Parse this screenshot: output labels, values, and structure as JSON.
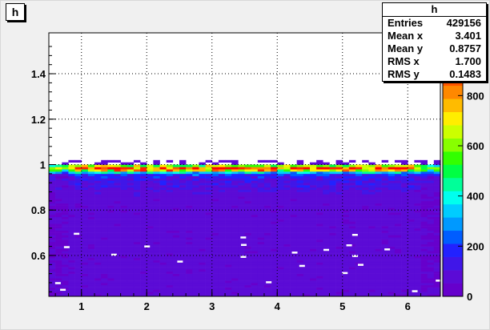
{
  "title": "h",
  "stats": {
    "name": "h",
    "rows": [
      {
        "label": "Entries",
        "value": "429156"
      },
      {
        "label": "Mean x",
        "value": "3.401"
      },
      {
        "label": "Mean y",
        "value": "0.8757"
      },
      {
        "label": "RMS x",
        "value": "1.700"
      },
      {
        "label": "RMS y",
        "value": "0.1483"
      }
    ]
  },
  "chart_data": {
    "type": "heatmap",
    "title": "h",
    "xlabel": "",
    "ylabel": "",
    "xlim": [
      0.5,
      6.5
    ],
    "ylim": [
      0.42,
      1.58
    ],
    "x_ticks": [
      1,
      2,
      3,
      4,
      5,
      6
    ],
    "y_ticks": [
      0.6,
      0.8,
      1.0,
      1.2,
      1.4
    ],
    "y_tick_labels": [
      "0.6",
      "0.8",
      "1",
      "1.2",
      "1.4"
    ],
    "z_ticks": [
      0,
      200,
      400,
      600,
      800
    ],
    "zlim": [
      0,
      1050
    ],
    "grid": true,
    "palette": [
      "#6600cc",
      "#5b0bd6",
      "#4016e8",
      "#2222ff",
      "#005dff",
      "#0099ff",
      "#00ccff",
      "#00ffee",
      "#00ff99",
      "#00ff44",
      "#33ff00",
      "#88ff00",
      "#ccff00",
      "#ffee00",
      "#ffbb00",
      "#ff8800",
      "#ff5500",
      "#ff2200",
      "#ff0000",
      "#ff0000"
    ],
    "description_of_density": {
      "x_range": [
        0.5,
        6.5
      ],
      "y_range": [
        0.42,
        1.02
      ],
      "ridge_y": 0.985,
      "ridge_peak_counts": 1000,
      "background_counts": 50
    }
  }
}
